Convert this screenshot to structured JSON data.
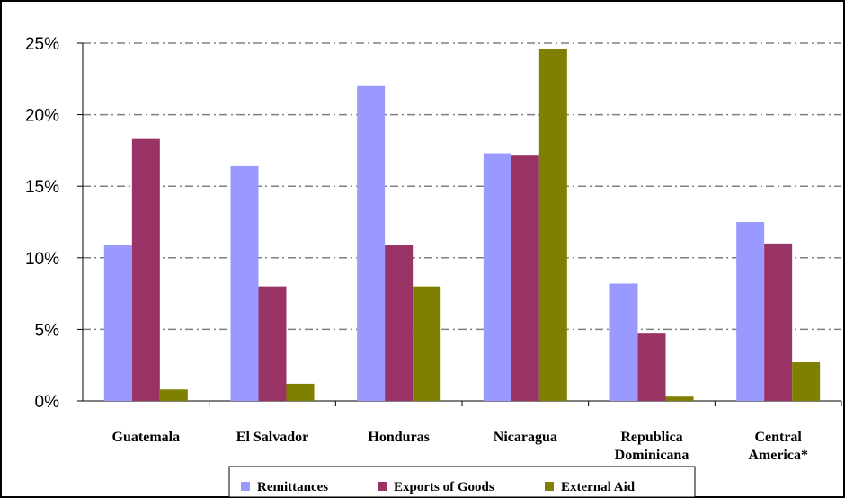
{
  "chart_data": {
    "type": "bar",
    "categories": [
      [
        "Guatemala"
      ],
      [
        "El Salvador"
      ],
      [
        "Honduras"
      ],
      [
        "Nicaragua"
      ],
      [
        "Republica",
        "Dominicana"
      ],
      [
        "Central",
        "America*"
      ]
    ],
    "series": [
      {
        "name": "Remittances",
        "color": "#9999ff",
        "values": [
          10.9,
          16.4,
          22.0,
          17.3,
          8.2,
          12.5
        ]
      },
      {
        "name": "Exports of Goods",
        "color": "#993366",
        "values": [
          18.3,
          8.0,
          10.9,
          17.2,
          4.7,
          11.0
        ]
      },
      {
        "name": "External Aid",
        "color": "#808000",
        "values": [
          0.8,
          1.2,
          8.0,
          24.6,
          0.3,
          2.7
        ]
      }
    ],
    "yticks": [
      "0%",
      "5%",
      "10%",
      "15%",
      "20%",
      "25%"
    ],
    "ylim": [
      0,
      25
    ],
    "grid": true,
    "legend_position": "bottom"
  }
}
